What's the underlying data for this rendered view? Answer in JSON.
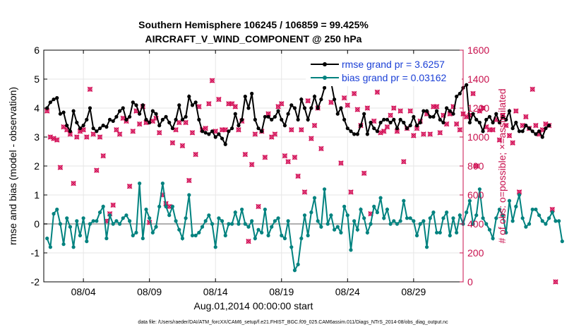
{
  "chart_data": {
    "type": "line",
    "title_line1": "Southern Hemisphere 106245 / 106859 = 99.425%",
    "title_line2": "AIRCRAFT_V_WIND_COMPONENT @ 250 hPa",
    "xlabel": "Aug.01,2014 00:00:00 start",
    "ylabel_left": "rmse and bias (model - observation)",
    "ylabel_right": "# of obs: o=possible; ×=assimilated",
    "footer": "data file: /Users/raeder/DAI/ATM_forcXX/CAM6_setup/f.e21.FHIST_BGC.f09_025.CAM6assim.011/Diags_NTrS_2014-08/obs_diag_output.nc",
    "x_range": [
      1.0,
      32.75
    ],
    "ylim_left": [
      -2,
      6
    ],
    "ylim_right": [
      0,
      1600
    ],
    "x_tick_days": [
      4,
      9,
      14,
      19,
      24,
      29
    ],
    "x_tick_labels": [
      "08/04",
      "08/09",
      "08/14",
      "08/19",
      "08/24",
      "08/29"
    ],
    "y_left_ticks": [
      -2,
      -1,
      0,
      1,
      2,
      3,
      4,
      5,
      6
    ],
    "y_left_tick_labels": [
      "-2",
      "-1",
      "0",
      "1",
      "2",
      "3",
      "4",
      "5",
      "6"
    ],
    "y_right_ticks": [
      0,
      200,
      400,
      600,
      800,
      1000,
      1200,
      1400,
      1600
    ],
    "y_right_tick_labels": [
      "0",
      "200",
      "400",
      "600",
      "800",
      "1000",
      "1200",
      "1400",
      "1600"
    ],
    "x_start": 1.25,
    "x_step": 0.25,
    "colors": {
      "rmse": "#000000",
      "bias": "#00827f",
      "obs": "#d4145a",
      "zero_line": "#b0b0b0",
      "grid": "#e6e6e6",
      "right_axis": "#c8104d",
      "legend_text": "#1a3fd6"
    },
    "series": [
      {
        "name": "rmse grand pr = 3.6257",
        "values": [
          4.0,
          4.2,
          4.3,
          4.35,
          3.8,
          3.85,
          3.4,
          3.2,
          3.9,
          3.5,
          3.3,
          3.4,
          3.6,
          4.0,
          3.3,
          3.2,
          3.3,
          3.4,
          3.35,
          3.6,
          3.55,
          3.7,
          3.9,
          4.0,
          3.6,
          3.7,
          4.2,
          4.1,
          3.8,
          4.1,
          3.6,
          3.5,
          3.9,
          3.8,
          3.4,
          3.6,
          3.7,
          3.5,
          3.3,
          3.6,
          4.1,
          3.6,
          3.7,
          4.4,
          4.1,
          4.2,
          3.6,
          3.2,
          3.15,
          3.1,
          3.2,
          3.0,
          3.1,
          2.95,
          2.75,
          3.2,
          3.3,
          3.8,
          3.4,
          3.6,
          4.4,
          4.0,
          4.5,
          3.6,
          3.3,
          3.2,
          3.7,
          3.7,
          3.6,
          3.7,
          3.9,
          3.6,
          3.4,
          3.8,
          4.1,
          4.0,
          3.6,
          4.3,
          4.0,
          3.6,
          4.0,
          4.4,
          4.0,
          4.3,
          4.7,
          5.0,
          4.9,
          4.3,
          3.8,
          4.0,
          3.6,
          3.3,
          3.2,
          3.1,
          3.1,
          3.4,
          3.8,
          3.1,
          3.5,
          3.3,
          3.2,
          3.5,
          3.6,
          3.6,
          3.5,
          3.6,
          3.3,
          3.6,
          3.5,
          3.3,
          3.4,
          3.7,
          3.4,
          3.5,
          3.9,
          3.9,
          3.7,
          3.7,
          3.9,
          3.6,
          3.5,
          4.0,
          3.9,
          3.8,
          4.4,
          4.5,
          4.7,
          4.8,
          3.5,
          3.8,
          3.6,
          3.5,
          3.2,
          3.6,
          3.7,
          3.5,
          3.8,
          3.5,
          3.7,
          3.6,
          3.9,
          3.3,
          3.5,
          3.2,
          3.2,
          3.4,
          3.3,
          3.2,
          3.1,
          3.2,
          3.0,
          3.3,
          3.4
        ]
      },
      {
        "name": "bias grand pr = 0.03162",
        "values": [
          -0.5,
          -0.8,
          0.35,
          0.5,
          0.0,
          -0.7,
          0.2,
          -0.1,
          -0.8,
          0.1,
          -0.4,
          0.2,
          -0.6,
          0.0,
          0.1,
          0.1,
          0.4,
          0.6,
          -0.5,
          0.3,
          0.0,
          0.1,
          0.0,
          0.2,
          0.3,
          0.1,
          -0.4,
          -0.3,
          1.4,
          -0.5,
          0.5,
          0.2,
          -0.3,
          -0.1,
          0.6,
          1.4,
          0.6,
          0.3,
          0.6,
          0.1,
          -0.2,
          -0.5,
          0.2,
          1.0,
          -0.4,
          -0.4,
          -0.3,
          -0.1,
          0.1,
          0.3,
          0.0,
          -0.8,
          0.2,
          0.1,
          -0.4,
          0.0,
          0.0,
          0.4,
          0.0,
          0.5,
          0.0,
          -0.1,
          0.1,
          -0.5,
          -0.2,
          -0.3,
          0.5,
          -0.4,
          -0.1,
          0.1,
          0.2,
          -0.4,
          -0.5,
          0.1,
          -0.8,
          -1.6,
          -1.4,
          -0.5,
          0.3,
          -0.4,
          0.4,
          0.9,
          0.1,
          -0.1,
          1.2,
          0.0,
          0.3,
          -0.2,
          -0.1,
          -0.3,
          0.6,
          0.3,
          -0.9,
          0.1,
          -0.2,
          0.5,
          0.2,
          -0.3,
          0.0,
          0.6,
          0.4,
          0.9,
          0.2,
          0.5,
          0.0,
          0.1,
          0.0,
          0.1,
          0.8,
          0.2,
          0.2,
          0.1,
          -0.4,
          0.0,
          0.1,
          -0.8,
          0.2,
          0.4,
          -0.3,
          -0.3,
          0.2,
          0.4,
          -0.4,
          0.2,
          -0.3,
          0.3,
          0.0,
          0.4,
          0.8,
          0.0,
          0.3,
          1.2,
          0.2,
          0.0,
          -0.2,
          -0.5,
          0.2,
          0.5,
          0.3,
          -0.3,
          0.8,
          0.1,
          0.6,
          1.0,
          0.2,
          -0.1,
          0.0,
          0.5,
          0.5,
          0.3,
          0.1,
          0.0,
          0.2,
          0.4,
          0.1,
          0.1,
          -0.6
        ]
      },
      {
        "name": "obs possible / assimilated",
        "axis": "right",
        "values": [
          1180,
          1000,
          990,
          980,
          790,
          1070,
          1050,
          1020,
          680,
          1000,
          1040,
          1050,
          1000,
          1330,
          1020,
          770,
          1000,
          870,
          420,
          470,
          530,
          1050,
          1020,
          1130,
          1110,
          660,
          1040,
          1180,
          1090,
          1210,
          1100,
          410,
          1110,
          1130,
          1030,
          600,
          540,
          520,
          960,
          1050,
          1100,
          940,
          1100,
          700,
          1030,
          880,
          1210,
          1050,
          1060,
          1230,
          1390,
          1040,
          1260,
          1050,
          1050,
          1230,
          1230,
          1210,
          1050,
          1110,
          880,
          280,
          810,
          1020,
          520,
          1040,
          860,
          1160,
          1000,
          1020,
          1210,
          1230,
          870,
          830,
          1050,
          860,
          730,
          1050,
          620,
          1250,
          990,
          1080,
          1200,
          920,
          1420,
          1420,
          1240,
          1380,
          1400,
          820,
          1270,
          1220,
          620,
          1300,
          1190,
          1080,
          750,
          1200,
          470,
          1110,
          1310,
          1030,
          1040,
          1070,
          1150,
          1200,
          1040,
          1180,
          830,
          1060,
          1180,
          1010,
          1060,
          1110,
          1020,
          1160,
          1020,
          1210,
          1210,
          1030,
          1150,
          1090,
          1160,
          1210,
          1090,
          1050,
          1160,
          1140,
          1150,
          1300,
          800,
          1180,
          1200,
          1070,
          1050,
          1050,
          1120,
          980,
          1150,
          1080,
          1010,
          960,
          1180,
          620,
          1080,
          1140,
          1060,
          1330,
          1080,
          1020,
          1050,
          1090,
          1080,
          500,
          0
        ]
      }
    ]
  }
}
